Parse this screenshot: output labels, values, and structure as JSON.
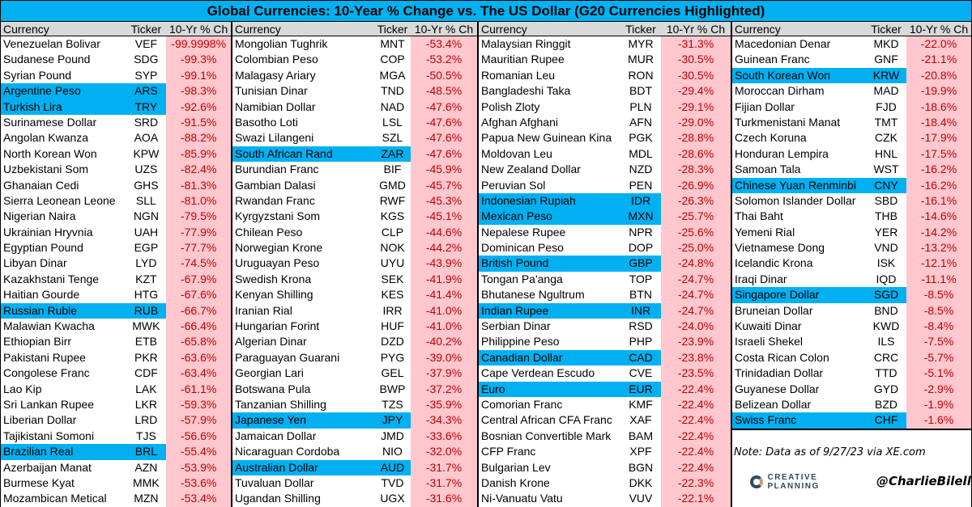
{
  "title": "Global Currencies: 10-Year % Change vs. The US Dollar (G20 Currencies Highlighted)",
  "headers": {
    "currency": "Currency",
    "ticker": "Ticker",
    "change": "10-Yr % Ch"
  },
  "colors": {
    "highlight": "#00b0f0",
    "negative_fill": "#ffc7ce",
    "negative_text": "#c00000",
    "header": "#d9d9d9"
  },
  "columns": [
    [
      [
        "Venezuelan Bolivar",
        "VEF",
        "-99.9998%",
        0
      ],
      [
        "Sudanese Pound",
        "SDG",
        "-99.3%",
        0
      ],
      [
        "Syrian Pound",
        "SYP",
        "-99.1%",
        0
      ],
      [
        "Argentine Peso",
        "ARS",
        "-98.3%",
        1
      ],
      [
        "Turkish Lira",
        "TRY",
        "-92.6%",
        1
      ],
      [
        "Surinamese Dollar",
        "SRD",
        "-91.5%",
        0
      ],
      [
        "Angolan Kwanza",
        "AOA",
        "-88.2%",
        0
      ],
      [
        "North Korean Won",
        "KPW",
        "-85.9%",
        0
      ],
      [
        "Uzbekistani Som",
        "UZS",
        "-82.4%",
        0
      ],
      [
        "Ghanaian Cedi",
        "GHS",
        "-81.3%",
        0
      ],
      [
        "Sierra Leonean Leone",
        "SLL",
        "-81.0%",
        0
      ],
      [
        "Nigerian Naira",
        "NGN",
        "-79.5%",
        0
      ],
      [
        "Ukrainian Hryvnia",
        "UAH",
        "-77.9%",
        0
      ],
      [
        "Egyptian Pound",
        "EGP",
        "-77.7%",
        0
      ],
      [
        "Libyan Dinar",
        "LYD",
        "-74.5%",
        0
      ],
      [
        "Kazakhstani Tenge",
        "KZT",
        "-67.9%",
        0
      ],
      [
        "Haitian Gourde",
        "HTG",
        "-67.6%",
        0
      ],
      [
        "Russian Ruble",
        "RUB",
        "-66.7%",
        1
      ],
      [
        "Malawian Kwacha",
        "MWK",
        "-66.4%",
        0
      ],
      [
        "Ethiopian Birr",
        "ETB",
        "-65.8%",
        0
      ],
      [
        "Pakistani Rupee",
        "PKR",
        "-63.6%",
        0
      ],
      [
        "Congolese Franc",
        "CDF",
        "-63.4%",
        0
      ],
      [
        "Lao Kip",
        "LAK",
        "-61.1%",
        0
      ],
      [
        "Sri Lankan Rupee",
        "LKR",
        "-59.3%",
        0
      ],
      [
        "Liberian Dollar",
        "LRD",
        "-57.9%",
        0
      ],
      [
        "Tajikistani Somoni",
        "TJS",
        "-56.6%",
        0
      ],
      [
        "Brazilian Real",
        "BRL",
        "-55.4%",
        1
      ],
      [
        "Azerbaijan Manat",
        "AZN",
        "-53.9%",
        0
      ],
      [
        "Burmese Kyat",
        "MMK",
        "-53.6%",
        0
      ],
      [
        "Mozambican Metical",
        "MZN",
        "-53.4%",
        0
      ]
    ],
    [
      [
        "Mongolian Tughrik",
        "MNT",
        "-53.4%",
        0
      ],
      [
        "Colombian Peso",
        "COP",
        "-53.2%",
        0
      ],
      [
        "Malagasy Ariary",
        "MGA",
        "-50.5%",
        0
      ],
      [
        "Tunisian Dinar",
        "TND",
        "-48.5%",
        0
      ],
      [
        "Namibian Dollar",
        "NAD",
        "-47.6%",
        0
      ],
      [
        "Basotho Loti",
        "LSL",
        "-47.6%",
        0
      ],
      [
        "Swazi Lilangeni",
        "SZL",
        "-47.6%",
        0
      ],
      [
        "South African Rand",
        "ZAR",
        "-47.6%",
        1
      ],
      [
        "Burundian Franc",
        "BIF",
        "-45.9%",
        0
      ],
      [
        "Gambian Dalasi",
        "GMD",
        "-45.7%",
        0
      ],
      [
        "Rwandan Franc",
        "RWF",
        "-45.3%",
        0
      ],
      [
        "Kyrgyzstani Som",
        "KGS",
        "-45.1%",
        0
      ],
      [
        "Chilean Peso",
        "CLP",
        "-44.6%",
        0
      ],
      [
        "Norwegian Krone",
        "NOK",
        "-44.2%",
        0
      ],
      [
        "Uruguayan Peso",
        "UYU",
        "-43.9%",
        0
      ],
      [
        "Swedish Krona",
        "SEK",
        "-41.9%",
        0
      ],
      [
        "Kenyan Shilling",
        "KES",
        "-41.4%",
        0
      ],
      [
        "Iranian Rial",
        "IRR",
        "-41.0%",
        0
      ],
      [
        "Hungarian Forint",
        "HUF",
        "-41.0%",
        0
      ],
      [
        "Algerian Dinar",
        "DZD",
        "-40.2%",
        0
      ],
      [
        "Paraguayan Guarani",
        "PYG",
        "-39.0%",
        0
      ],
      [
        "Georgian Lari",
        "GEL",
        "-37.9%",
        0
      ],
      [
        "Botswana Pula",
        "BWP",
        "-37.2%",
        0
      ],
      [
        "Tanzanian Shilling",
        "TZS",
        "-35.9%",
        0
      ],
      [
        "Japanese Yen",
        "JPY",
        "-34.3%",
        1
      ],
      [
        "Jamaican Dollar",
        "JMD",
        "-33.6%",
        0
      ],
      [
        "Nicaraguan Cordoba",
        "NIO",
        "-32.0%",
        0
      ],
      [
        "Australian Dollar",
        "AUD",
        "-31.7%",
        1
      ],
      [
        "Tuvaluan Dollar",
        "TVD",
        "-31.7%",
        0
      ],
      [
        "Ugandan Shilling",
        "UGX",
        "-31.6%",
        0
      ]
    ],
    [
      [
        "Malaysian Ringgit",
        "MYR",
        "-31.3%",
        0
      ],
      [
        "Mauritian Rupee",
        "MUR",
        "-30.5%",
        0
      ],
      [
        "Romanian Leu",
        "RON",
        "-30.5%",
        0
      ],
      [
        "Bangladeshi Taka",
        "BDT",
        "-29.4%",
        0
      ],
      [
        "Polish Zloty",
        "PLN",
        "-29.1%",
        0
      ],
      [
        "Afghan Afghani",
        "AFN",
        "-29.0%",
        0
      ],
      [
        "Papua New Guinean Kina",
        "PGK",
        "-28.8%",
        0
      ],
      [
        "Moldovan Leu",
        "MDL",
        "-28.6%",
        0
      ],
      [
        "New Zealand Dollar",
        "NZD",
        "-28.3%",
        0
      ],
      [
        "Peruvian Sol",
        "PEN",
        "-26.9%",
        0
      ],
      [
        "Indonesian Rupiah",
        "IDR",
        "-26.3%",
        1
      ],
      [
        "Mexican Peso",
        "MXN",
        "-25.7%",
        1
      ],
      [
        "Nepalese Rupee",
        "NPR",
        "-25.6%",
        0
      ],
      [
        "Dominican Peso",
        "DOP",
        "-25.0%",
        0
      ],
      [
        "British Pound",
        "GBP",
        "-24.8%",
        1
      ],
      [
        "Tongan Pa'anga",
        "TOP",
        "-24.7%",
        0
      ],
      [
        "Bhutanese Ngultrum",
        "BTN",
        "-24.7%",
        0
      ],
      [
        "Indian Rupee",
        "INR",
        "-24.7%",
        1
      ],
      [
        "Serbian Dinar",
        "RSD",
        "-24.0%",
        0
      ],
      [
        "Philippine Peso",
        "PHP",
        "-23.9%",
        0
      ],
      [
        "Canadian Dollar",
        "CAD",
        "-23.8%",
        1
      ],
      [
        "Cape Verdean Escudo",
        "CVE",
        "-23.5%",
        0
      ],
      [
        "Euro",
        "EUR",
        "-22.4%",
        1
      ],
      [
        "Comorian Franc",
        "KMF",
        "-22.4%",
        0
      ],
      [
        "Central African CFA Franc",
        "XAF",
        "-22.4%",
        0
      ],
      [
        "Bosnian Convertible Mark",
        "BAM",
        "-22.4%",
        0
      ],
      [
        "CFP Franc",
        "XPF",
        "-22.4%",
        0
      ],
      [
        "Bulgarian Lev",
        "BGN",
        "-22.4%",
        0
      ],
      [
        "Danish Krone",
        "DKK",
        "-22.3%",
        0
      ],
      [
        "Ni-Vanuatu Vatu",
        "VUV",
        "-22.1%",
        0
      ]
    ],
    [
      [
        "Macedonian Denar",
        "MKD",
        "-22.0%",
        0
      ],
      [
        "Guinean Franc",
        "GNF",
        "-21.1%",
        0
      ],
      [
        "South Korean Won",
        "KRW",
        "-20.8%",
        1
      ],
      [
        "Moroccan Dirham",
        "MAD",
        "-19.9%",
        0
      ],
      [
        "Fijian Dollar",
        "FJD",
        "-18.6%",
        0
      ],
      [
        "Turkmenistani Manat",
        "TMT",
        "-18.4%",
        0
      ],
      [
        "Czech Koruna",
        "CZK",
        "-17.9%",
        0
      ],
      [
        "Honduran Lempira",
        "HNL",
        "-17.5%",
        0
      ],
      [
        "Samoan Tala",
        "WST",
        "-16.2%",
        0
      ],
      [
        "Chinese Yuan Renminbi",
        "CNY",
        "-16.2%",
        1
      ],
      [
        "Solomon Islander Dollar",
        "SBD",
        "-16.1%",
        0
      ],
      [
        "Thai Baht",
        "THB",
        "-14.6%",
        0
      ],
      [
        "Yemeni Rial",
        "YER",
        "-14.2%",
        0
      ],
      [
        "Vietnamese Dong",
        "VND",
        "-13.2%",
        0
      ],
      [
        "Icelandic Krona",
        "ISK",
        "-12.1%",
        0
      ],
      [
        "Iraqi Dinar",
        "IQD",
        "-11.1%",
        0
      ],
      [
        "Singapore Dollar",
        "SGD",
        "-8.5%",
        1
      ],
      [
        "Bruneian Dollar",
        "BND",
        "-8.5%",
        0
      ],
      [
        "Kuwaiti Dinar",
        "KWD",
        "-8.4%",
        0
      ],
      [
        "Israeli Shekel",
        "ILS",
        "-7.5%",
        0
      ],
      [
        "Costa Rican Colon",
        "CRC",
        "-5.7%",
        0
      ],
      [
        "Trinidadian Dollar",
        "TTD",
        "-5.1%",
        0
      ],
      [
        "Guyanese Dollar",
        "GYD",
        "-2.9%",
        0
      ],
      [
        "Belizean Dollar",
        "BZD",
        "-1.9%",
        0
      ],
      [
        "Swiss Franc",
        "CHF",
        "-1.6%",
        1
      ]
    ]
  ],
  "note": "Note: Data as of 9/27/23 via XE.com",
  "logo": "CREATIVE PLANNING",
  "handle": "@CharlieBilello"
}
